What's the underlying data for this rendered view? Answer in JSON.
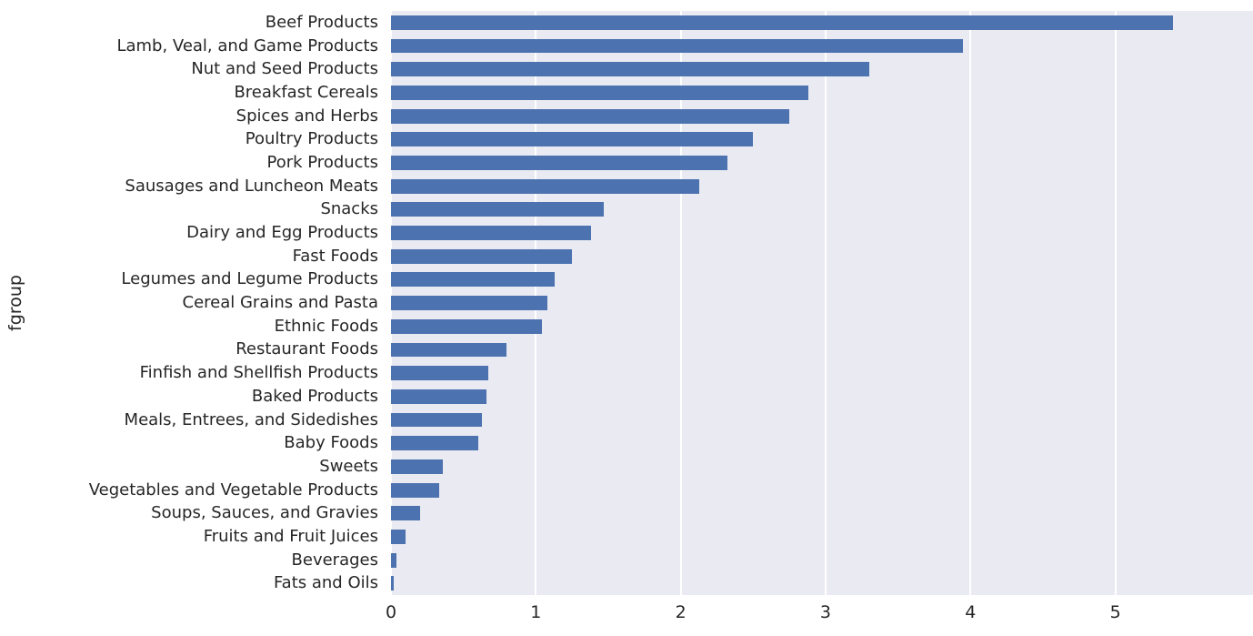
{
  "chart_data": {
    "type": "bar",
    "orientation": "horizontal",
    "title": "",
    "xlabel": "",
    "ylabel": "fgroup",
    "xlim": [
      0,
      5.95
    ],
    "xticks": [
      0,
      1,
      2,
      3,
      4,
      5
    ],
    "grid": true,
    "legend": "none",
    "bar_color": "#4c72b0",
    "plot_background": "#eaeaf2",
    "gridline_color": "#ffffff",
    "categories": [
      "Beef Products",
      "Lamb, Veal, and Game Products",
      "Nut and Seed Products",
      "Breakfast Cereals",
      "Spices and Herbs",
      "Poultry Products",
      "Pork Products",
      "Sausages and Luncheon Meats",
      "Snacks",
      "Dairy and Egg Products",
      "Fast Foods",
      "Legumes and Legume Products",
      "Cereal Grains and Pasta",
      "Ethnic Foods",
      "Restaurant Foods",
      "Finfish and Shellfish Products",
      "Baked Products",
      "Meals, Entrees, and Sidedishes",
      "Baby Foods",
      "Sweets",
      "Vegetables and Vegetable Products",
      "Soups, Sauces, and Gravies",
      "Fruits and Fruit Juices",
      "Beverages",
      "Fats and Oils"
    ],
    "values": [
      5.4,
      3.95,
      3.3,
      2.88,
      2.75,
      2.5,
      2.32,
      2.13,
      1.47,
      1.38,
      1.25,
      1.13,
      1.08,
      1.04,
      0.8,
      0.67,
      0.66,
      0.63,
      0.6,
      0.36,
      0.33,
      0.2,
      0.1,
      0.04,
      0.02
    ]
  }
}
